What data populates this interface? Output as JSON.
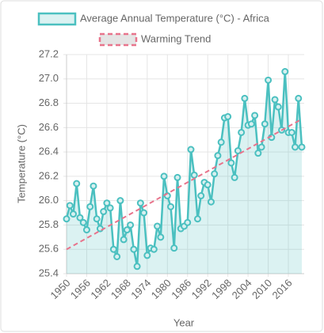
{
  "chart_data": {
    "type": "line",
    "xlabel": "Year",
    "ylabel": "Temperature (°C)",
    "x": [
      1950,
      1951,
      1952,
      1953,
      1954,
      1955,
      1956,
      1957,
      1958,
      1959,
      1960,
      1961,
      1962,
      1963,
      1964,
      1965,
      1966,
      1967,
      1968,
      1969,
      1970,
      1971,
      1972,
      1973,
      1974,
      1975,
      1976,
      1977,
      1978,
      1979,
      1980,
      1981,
      1982,
      1983,
      1984,
      1985,
      1986,
      1987,
      1988,
      1989,
      1990,
      1991,
      1992,
      1993,
      1994,
      1995,
      1996,
      1997,
      1998,
      1999,
      2000,
      2001,
      2002,
      2003,
      2004,
      2005,
      2006,
      2007,
      2008,
      2009,
      2010,
      2011,
      2012,
      2013,
      2014,
      2015,
      2016,
      2017,
      2018,
      2019,
      2020
    ],
    "series": [
      {
        "name": "Average Annual Temperature (°C) - Africa",
        "color": "#4bc0c0",
        "values": [
          25.85,
          25.96,
          25.89,
          26.14,
          25.86,
          25.82,
          25.76,
          25.95,
          26.12,
          25.85,
          25.77,
          25.91,
          25.98,
          25.94,
          25.6,
          25.54,
          26.0,
          25.68,
          25.76,
          25.8,
          25.6,
          25.46,
          25.98,
          25.9,
          25.55,
          25.61,
          25.6,
          25.79,
          25.7,
          26.2,
          26.04,
          25.95,
          25.61,
          26.19,
          25.77,
          25.79,
          25.82,
          26.42,
          26.21,
          25.85,
          26.04,
          26.15,
          26.13,
          25.99,
          26.22,
          26.37,
          26.48,
          26.68,
          26.69,
          26.31,
          26.19,
          26.41,
          26.56,
          26.84,
          26.62,
          26.63,
          26.7,
          26.39,
          26.44,
          26.63,
          26.99,
          26.52,
          26.83,
          26.77,
          26.58,
          27.06,
          26.56,
          26.56,
          26.44,
          26.84,
          26.44
        ]
      },
      {
        "name": "Warming Trend",
        "color": "#e8748c",
        "x": [
          1950,
          2020
        ],
        "values": [
          25.6,
          26.67
        ]
      }
    ],
    "xlim": [
      1950,
      2020
    ],
    "xticks": [
      1950,
      1956,
      1962,
      1968,
      1974,
      1980,
      1986,
      1992,
      1998,
      2004,
      2010,
      2016
    ],
    "ylim": [
      25.4,
      27.2
    ],
    "yticks": [
      25.4,
      25.6,
      25.8,
      {
        "value": 26.0,
        "label": "26.0"
      },
      26.2,
      26.4,
      26.6,
      26.8,
      {
        "value": 27.0,
        "label": "27.0"
      },
      27.2
    ],
    "grid": true
  }
}
